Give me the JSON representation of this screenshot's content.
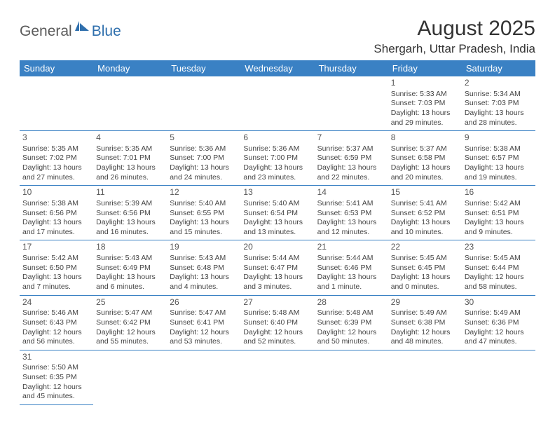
{
  "logo": {
    "part1": "General",
    "part2": "Blue"
  },
  "title": "August 2025",
  "location": "Shergarh, Uttar Pradesh, India",
  "colors": {
    "header_bg": "#3a81c4",
    "header_text": "#ffffff",
    "border": "#3a81c4",
    "logo_gray": "#5a5a5a",
    "logo_blue": "#2f6fad",
    "text": "#444444",
    "page_bg": "#ffffff"
  },
  "typography": {
    "title_fontsize": 30,
    "location_fontsize": 17,
    "dayheader_fontsize": 13,
    "daynum_fontsize": 12,
    "cell_fontsize": 10.5,
    "logo_fontsize": 21
  },
  "day_headers": [
    "Sunday",
    "Monday",
    "Tuesday",
    "Wednesday",
    "Thursday",
    "Friday",
    "Saturday"
  ],
  "weeks": [
    [
      null,
      null,
      null,
      null,
      null,
      {
        "n": "1",
        "sr": "Sunrise: 5:33 AM",
        "ss": "Sunset: 7:03 PM",
        "d1": "Daylight: 13 hours",
        "d2": "and 29 minutes."
      },
      {
        "n": "2",
        "sr": "Sunrise: 5:34 AM",
        "ss": "Sunset: 7:03 PM",
        "d1": "Daylight: 13 hours",
        "d2": "and 28 minutes."
      }
    ],
    [
      {
        "n": "3",
        "sr": "Sunrise: 5:35 AM",
        "ss": "Sunset: 7:02 PM",
        "d1": "Daylight: 13 hours",
        "d2": "and 27 minutes."
      },
      {
        "n": "4",
        "sr": "Sunrise: 5:35 AM",
        "ss": "Sunset: 7:01 PM",
        "d1": "Daylight: 13 hours",
        "d2": "and 26 minutes."
      },
      {
        "n": "5",
        "sr": "Sunrise: 5:36 AM",
        "ss": "Sunset: 7:00 PM",
        "d1": "Daylight: 13 hours",
        "d2": "and 24 minutes."
      },
      {
        "n": "6",
        "sr": "Sunrise: 5:36 AM",
        "ss": "Sunset: 7:00 PM",
        "d1": "Daylight: 13 hours",
        "d2": "and 23 minutes."
      },
      {
        "n": "7",
        "sr": "Sunrise: 5:37 AM",
        "ss": "Sunset: 6:59 PM",
        "d1": "Daylight: 13 hours",
        "d2": "and 22 minutes."
      },
      {
        "n": "8",
        "sr": "Sunrise: 5:37 AM",
        "ss": "Sunset: 6:58 PM",
        "d1": "Daylight: 13 hours",
        "d2": "and 20 minutes."
      },
      {
        "n": "9",
        "sr": "Sunrise: 5:38 AM",
        "ss": "Sunset: 6:57 PM",
        "d1": "Daylight: 13 hours",
        "d2": "and 19 minutes."
      }
    ],
    [
      {
        "n": "10",
        "sr": "Sunrise: 5:38 AM",
        "ss": "Sunset: 6:56 PM",
        "d1": "Daylight: 13 hours",
        "d2": "and 17 minutes."
      },
      {
        "n": "11",
        "sr": "Sunrise: 5:39 AM",
        "ss": "Sunset: 6:56 PM",
        "d1": "Daylight: 13 hours",
        "d2": "and 16 minutes."
      },
      {
        "n": "12",
        "sr": "Sunrise: 5:40 AM",
        "ss": "Sunset: 6:55 PM",
        "d1": "Daylight: 13 hours",
        "d2": "and 15 minutes."
      },
      {
        "n": "13",
        "sr": "Sunrise: 5:40 AM",
        "ss": "Sunset: 6:54 PM",
        "d1": "Daylight: 13 hours",
        "d2": "and 13 minutes."
      },
      {
        "n": "14",
        "sr": "Sunrise: 5:41 AM",
        "ss": "Sunset: 6:53 PM",
        "d1": "Daylight: 13 hours",
        "d2": "and 12 minutes."
      },
      {
        "n": "15",
        "sr": "Sunrise: 5:41 AM",
        "ss": "Sunset: 6:52 PM",
        "d1": "Daylight: 13 hours",
        "d2": "and 10 minutes."
      },
      {
        "n": "16",
        "sr": "Sunrise: 5:42 AM",
        "ss": "Sunset: 6:51 PM",
        "d1": "Daylight: 13 hours",
        "d2": "and 9 minutes."
      }
    ],
    [
      {
        "n": "17",
        "sr": "Sunrise: 5:42 AM",
        "ss": "Sunset: 6:50 PM",
        "d1": "Daylight: 13 hours",
        "d2": "and 7 minutes."
      },
      {
        "n": "18",
        "sr": "Sunrise: 5:43 AM",
        "ss": "Sunset: 6:49 PM",
        "d1": "Daylight: 13 hours",
        "d2": "and 6 minutes."
      },
      {
        "n": "19",
        "sr": "Sunrise: 5:43 AM",
        "ss": "Sunset: 6:48 PM",
        "d1": "Daylight: 13 hours",
        "d2": "and 4 minutes."
      },
      {
        "n": "20",
        "sr": "Sunrise: 5:44 AM",
        "ss": "Sunset: 6:47 PM",
        "d1": "Daylight: 13 hours",
        "d2": "and 3 minutes."
      },
      {
        "n": "21",
        "sr": "Sunrise: 5:44 AM",
        "ss": "Sunset: 6:46 PM",
        "d1": "Daylight: 13 hours",
        "d2": "and 1 minute."
      },
      {
        "n": "22",
        "sr": "Sunrise: 5:45 AM",
        "ss": "Sunset: 6:45 PM",
        "d1": "Daylight: 13 hours",
        "d2": "and 0 minutes."
      },
      {
        "n": "23",
        "sr": "Sunrise: 5:45 AM",
        "ss": "Sunset: 6:44 PM",
        "d1": "Daylight: 12 hours",
        "d2": "and 58 minutes."
      }
    ],
    [
      {
        "n": "24",
        "sr": "Sunrise: 5:46 AM",
        "ss": "Sunset: 6:43 PM",
        "d1": "Daylight: 12 hours",
        "d2": "and 56 minutes."
      },
      {
        "n": "25",
        "sr": "Sunrise: 5:47 AM",
        "ss": "Sunset: 6:42 PM",
        "d1": "Daylight: 12 hours",
        "d2": "and 55 minutes."
      },
      {
        "n": "26",
        "sr": "Sunrise: 5:47 AM",
        "ss": "Sunset: 6:41 PM",
        "d1": "Daylight: 12 hours",
        "d2": "and 53 minutes."
      },
      {
        "n": "27",
        "sr": "Sunrise: 5:48 AM",
        "ss": "Sunset: 6:40 PM",
        "d1": "Daylight: 12 hours",
        "d2": "and 52 minutes."
      },
      {
        "n": "28",
        "sr": "Sunrise: 5:48 AM",
        "ss": "Sunset: 6:39 PM",
        "d1": "Daylight: 12 hours",
        "d2": "and 50 minutes."
      },
      {
        "n": "29",
        "sr": "Sunrise: 5:49 AM",
        "ss": "Sunset: 6:38 PM",
        "d1": "Daylight: 12 hours",
        "d2": "and 48 minutes."
      },
      {
        "n": "30",
        "sr": "Sunrise: 5:49 AM",
        "ss": "Sunset: 6:36 PM",
        "d1": "Daylight: 12 hours",
        "d2": "and 47 minutes."
      }
    ],
    [
      {
        "n": "31",
        "sr": "Sunrise: 5:50 AM",
        "ss": "Sunset: 6:35 PM",
        "d1": "Daylight: 12 hours",
        "d2": "and 45 minutes."
      },
      null,
      null,
      null,
      null,
      null,
      null
    ]
  ]
}
